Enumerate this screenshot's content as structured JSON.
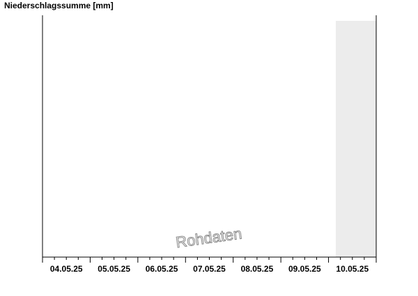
{
  "chart_data": {
    "type": "bar",
    "title": "Niederschlagssumme [mm]",
    "categories": [
      "04.05.25",
      "05.05.25",
      "06.05.25",
      "07.05.25",
      "08.05.25",
      "09.05.25",
      "10.05.25"
    ],
    "annotation": "Rohdaten"
  }
}
